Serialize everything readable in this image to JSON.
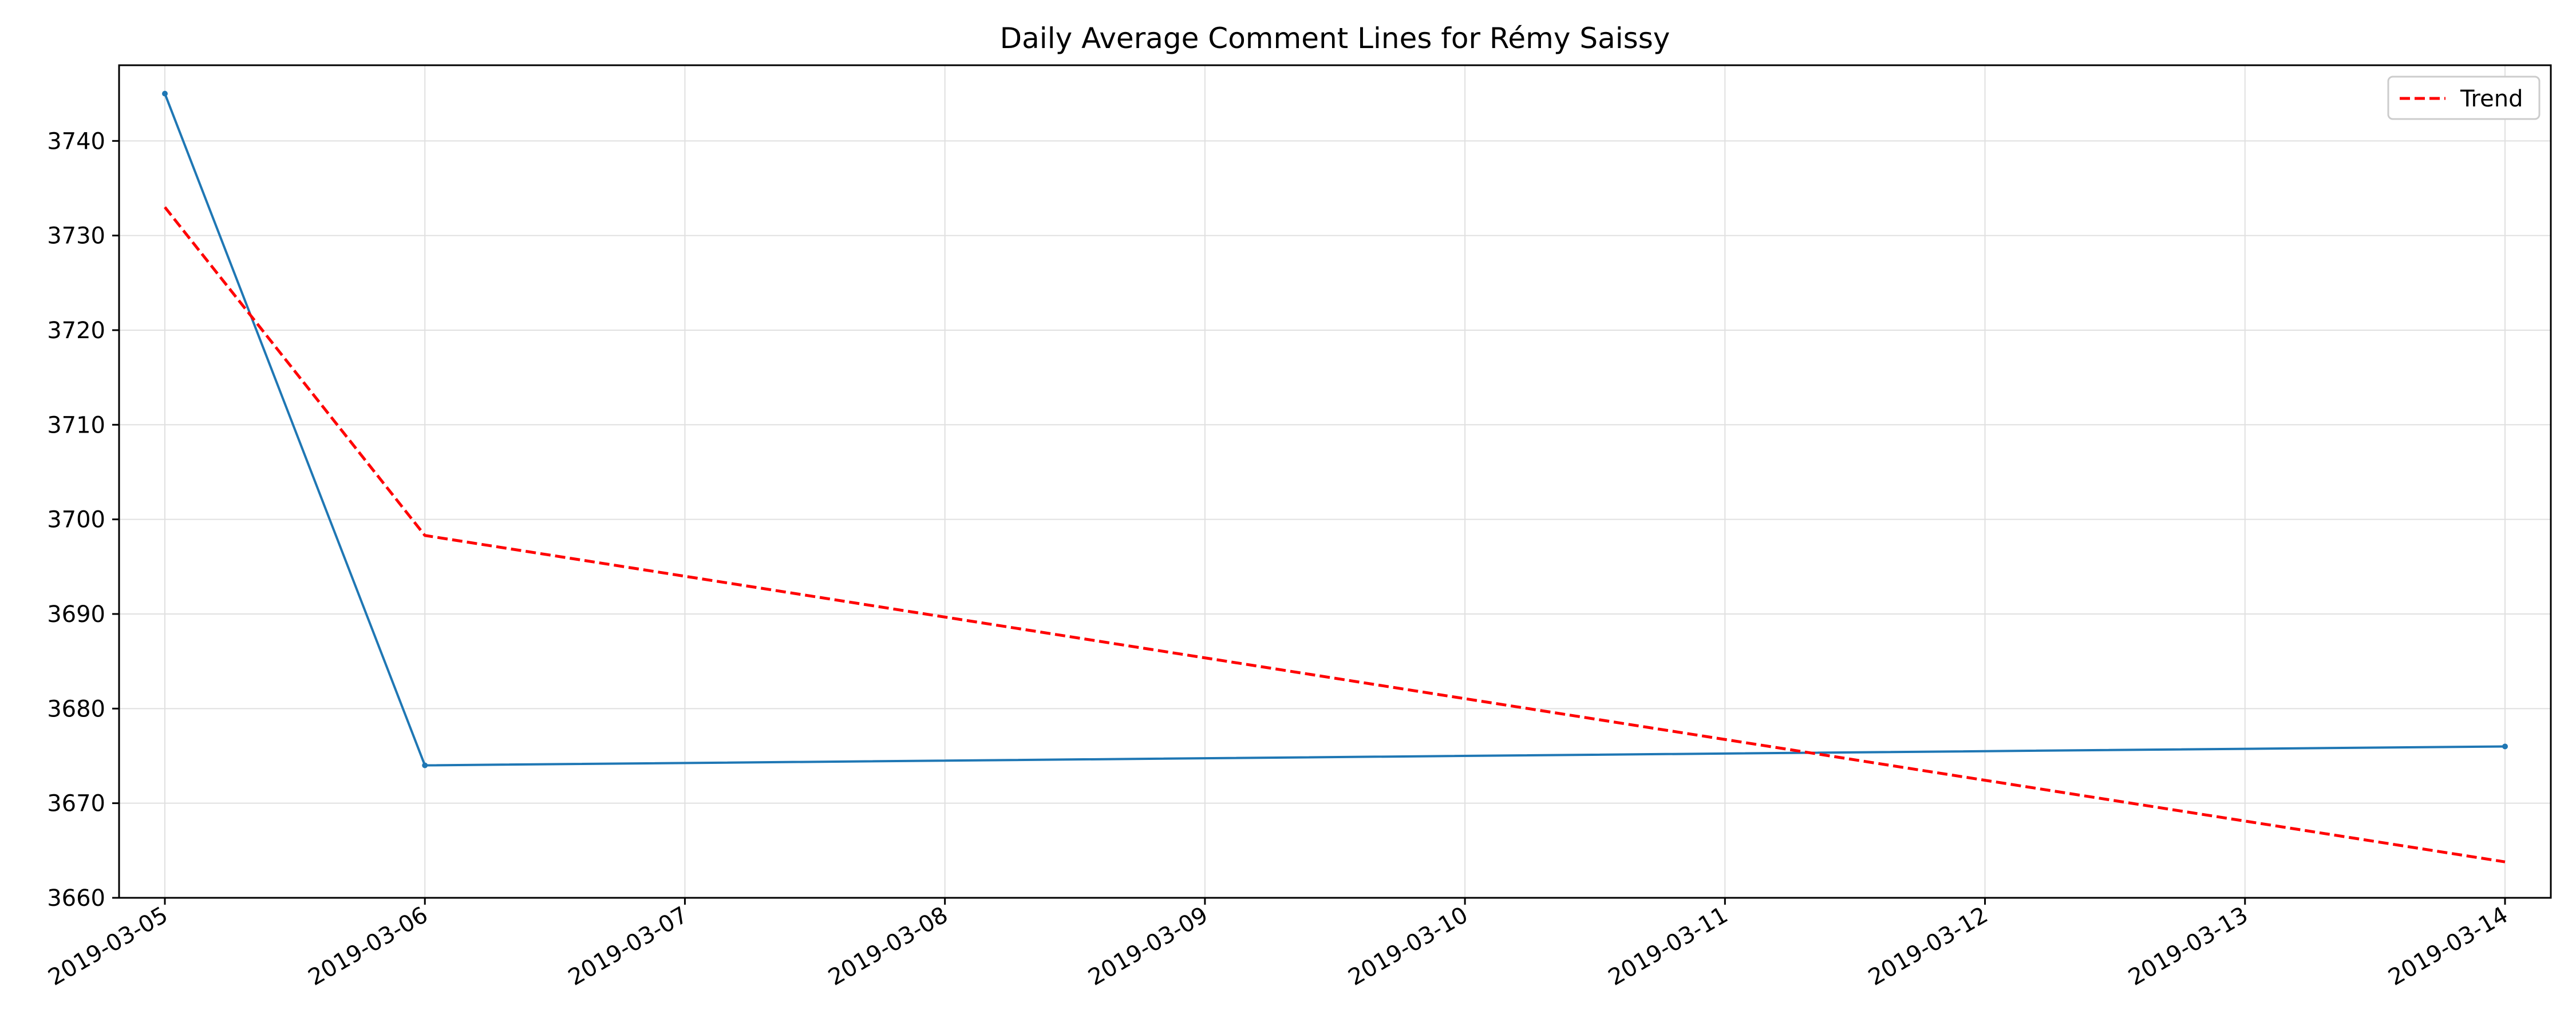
{
  "chart_data": {
    "type": "line",
    "title": "Daily Average Comment Lines for Rémy Saissy",
    "xlabel": "",
    "ylabel": "",
    "x": [
      "2019-03-05",
      "2019-03-06",
      "2019-03-14"
    ],
    "x_ticks": [
      "2019-03-05",
      "2019-03-06",
      "2019-03-07",
      "2019-03-08",
      "2019-03-09",
      "2019-03-10",
      "2019-03-11",
      "2019-03-12",
      "2019-03-13",
      "2019-03-14"
    ],
    "xlim": [
      "2019-03-05",
      "2019-03-14"
    ],
    "y_ticks": [
      3660,
      3670,
      3680,
      3690,
      3700,
      3710,
      3720,
      3730,
      3740
    ],
    "ylim": [
      3660,
      3748
    ],
    "grid": true,
    "legend_position": "top-right",
    "series": [
      {
        "x": [
          "2019-03-05",
          "2019-03-06",
          "2019-03-14"
        ],
        "values": [
          3745,
          3674,
          3676
        ],
        "color": "#1f77b4",
        "style": "solid",
        "marker": "dot"
      },
      {
        "name": "Trend",
        "x": [
          "2019-03-05",
          "2019-03-06",
          "2019-03-14"
        ],
        "values": [
          3733,
          3698.3,
          3663.8
        ],
        "color": "#ff0000",
        "style": "dashed"
      }
    ]
  }
}
